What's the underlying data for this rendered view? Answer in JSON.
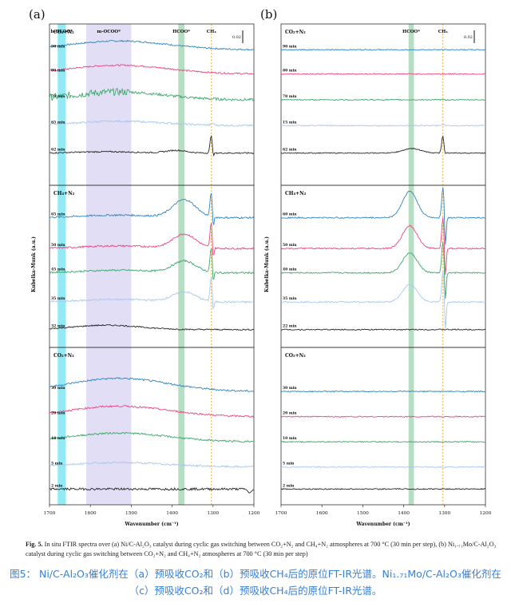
{
  "figure": {
    "panel_labels": [
      "(a)",
      "(b)"
    ],
    "scale_bar_label": "0.02",
    "ylabel": "Kubelka-Munk (a.u.)",
    "xlabel": "Wavenumber (cm⁻¹)"
  },
  "caption": {
    "prefix": "Fig. 5.",
    "text": "In situ FTIR spectra over (a) Ni/C-Al₂O₃ catalyst during cyclic gas switching between CO₂+N₂ and CH₄+N₂ atmospheres at 700 °C (30 min per step), (b) Ni₁.₇₁Mo/C-Al₂O₃ catalyst during cyclic gas switching between CO₂+N₂ and CH₄+N₂ atmospheres at 700 °C (30 min per step)",
    "chinese": "图5： Ni/C-Al₂O₃催化剂在（a）预吸收CO₂和（b）预吸收CH₄后的原位FT-IR光谱。Ni₁.₇₁Mo/C-Al₂O₃催化剂在（c）预吸收CO₂和（d）预吸收CH₄后的原位FT-IR光谱。"
  },
  "chart_data": [
    {
      "type": "line",
      "panel": "(a)",
      "xlabel": "Wavenumber (cm⁻¹)",
      "ylabel": "Kubelka-Munk (a.u.)",
      "xlim": [
        1700,
        1200
      ],
      "x_ticks": [
        1700,
        1600,
        1500,
        1400,
        1300,
        1200
      ],
      "scale_bar": "0.02",
      "bands": [
        {
          "label": "b-OCOO*",
          "range": [
            1680,
            1660
          ],
          "color": "#7fe6f2"
        },
        {
          "label": "m-OCOO*",
          "range": [
            1610,
            1500
          ],
          "color": "#dcd8f3"
        },
        {
          "label": "HCOO*",
          "range": [
            1385,
            1370
          ],
          "color": "#a9d8b8"
        },
        {
          "label": "CH₄",
          "range": [
            1304,
            1304
          ],
          "color": "#f0b040"
        }
      ],
      "sections": [
        {
          "atmosphere": "CO₂+N₂",
          "series": [
            {
              "name": "90 min",
              "color": "#2f86c0",
              "profile": "broad hump near 1600–1500 cm⁻¹"
            },
            {
              "name": "80 min",
              "color": "#e8477e",
              "profile": "broad hump"
            },
            {
              "name": "70 min",
              "color": "#3fa86d",
              "profile": "noisy broad hump"
            },
            {
              "name": "65 min",
              "color": "#a9c8ec",
              "profile": "broad hump"
            },
            {
              "name": "62 min",
              "color": "#262626",
              "profile": "CH₄ peak at 1304 cm⁻¹"
            }
          ]
        },
        {
          "atmosphere": "CH₄+N₂",
          "series": [
            {
              "name": "65 min",
              "color": "#2f86c0",
              "profile": "HCOO* band and CH₄ peak"
            },
            {
              "name": "50 min",
              "color": "#e8477e",
              "profile": "HCOO* band and CH₄ peak"
            },
            {
              "name": "45 min",
              "color": "#3fa86d",
              "profile": "HCOO* band and CH₄ peak"
            },
            {
              "name": "35 min",
              "color": "#a9c8ec",
              "profile": "HCOO* band and CH₄ peak"
            },
            {
              "name": "32 min",
              "color": "#262626",
              "profile": "broad hump"
            }
          ]
        },
        {
          "atmosphere": "CO₂+N₂",
          "series": [
            {
              "name": "30 min",
              "color": "#2f86c0",
              "profile": "broad hump"
            },
            {
              "name": "20 min",
              "color": "#e8477e",
              "profile": "broad hump"
            },
            {
              "name": "10 min",
              "color": "#3fa86d",
              "profile": "broad hump"
            },
            {
              "name": "5 min",
              "color": "#a9c8ec",
              "profile": "weak hump"
            },
            {
              "name": "2 min",
              "color": "#262626",
              "profile": "flat, noisy"
            }
          ]
        }
      ]
    },
    {
      "type": "line",
      "panel": "(b)",
      "xlabel": "Wavenumber (cm⁻¹)",
      "ylabel": "Kubelka-Munk (a.u.)",
      "xlim": [
        1700,
        1200
      ],
      "x_ticks": [
        1700,
        1600,
        1500,
        1400,
        1300,
        1200
      ],
      "scale_bar": "0.02",
      "bands": [
        {
          "label": "HCOO*",
          "range": [
            1388,
            1375
          ],
          "color": "#a9d8b8"
        },
        {
          "label": "CH₄",
          "range": [
            1304,
            1304
          ],
          "color": "#f0b040"
        }
      ],
      "sections": [
        {
          "atmosphere": "CO₂+N₂",
          "series": [
            {
              "name": "90 min",
              "color": "#2f86c0",
              "profile": "flat"
            },
            {
              "name": "80 min",
              "color": "#e8477e",
              "profile": "flat"
            },
            {
              "name": "70 min",
              "color": "#3fa86d",
              "profile": "flat"
            },
            {
              "name": "15 min",
              "color": "#a9c8ec",
              "profile": "small CH₄ peak"
            },
            {
              "name": "62 min",
              "color": "#262626",
              "profile": "HCOO* hump and CH₄ peak"
            }
          ]
        },
        {
          "atmosphere": "CH₄+N₂",
          "series": [
            {
              "name": "60 min",
              "color": "#2f86c0",
              "profile": "strong HCOO* band and CH₄ peak"
            },
            {
              "name": "50 min",
              "color": "#e8477e",
              "profile": "strong HCOO* band and CH₄ peak"
            },
            {
              "name": "40 min",
              "color": "#3fa86d",
              "profile": "strong HCOO* band and CH₄ peak"
            },
            {
              "name": "35 min",
              "color": "#a9c8ec",
              "profile": "strong HCOO* band and CH₄ peak"
            },
            {
              "name": "22 min",
              "color": "#262626",
              "profile": "flat"
            }
          ]
        },
        {
          "atmosphere": "CO₂+N₂",
          "series": [
            {
              "name": "30 min",
              "color": "#2f86c0",
              "profile": "flat"
            },
            {
              "name": "20 min",
              "color": "#e8477e",
              "profile": "flat"
            },
            {
              "name": "10 min",
              "color": "#3fa86d",
              "profile": "flat"
            },
            {
              "name": "5 min",
              "color": "#a9c8ec",
              "profile": "flat"
            },
            {
              "name": "2 min",
              "color": "#262626",
              "profile": "flat"
            }
          ]
        }
      ]
    }
  ]
}
